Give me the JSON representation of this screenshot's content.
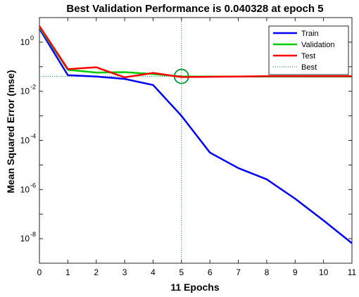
{
  "chart_data": {
    "type": "line",
    "title": "Best Validation Performance is 0.040328 at epoch 5",
    "xlabel": "11 Epochs",
    "ylabel": "Mean Squared Error  (mse)",
    "x": [
      0,
      1,
      2,
      3,
      4,
      5,
      6,
      7,
      8,
      9,
      10,
      11
    ],
    "xlim": [
      0,
      11
    ],
    "ylim": [
      1e-09,
      10
    ],
    "yscale": "log",
    "xticks": [
      "0",
      "1",
      "2",
      "3",
      "4",
      "5",
      "6",
      "7",
      "8",
      "9",
      "10",
      "11"
    ],
    "yticks": [
      {
        "value": 1,
        "base": "10",
        "exp": "0"
      },
      {
        "value": 0.01,
        "base": "10",
        "exp": "-2"
      },
      {
        "value": 0.0001,
        "base": "10",
        "exp": "-4"
      },
      {
        "value": 1e-06,
        "base": "10",
        "exp": "-6"
      },
      {
        "value": 1e-08,
        "base": "10",
        "exp": "-8"
      }
    ],
    "grid": false,
    "legend_position": "top-right",
    "series": [
      {
        "name": "Train",
        "color": "#0000ff",
        "values": [
          3.5,
          0.045,
          0.04,
          0.032,
          0.018,
          0.001,
          3.2e-05,
          7.5e-06,
          2.6e-06,
          4.2e-07,
          5.5e-08,
          6.5e-09
        ]
      },
      {
        "name": "Validation",
        "color": "#00cc00",
        "values": [
          4.0,
          0.075,
          0.058,
          0.06,
          0.05,
          0.040328,
          0.04,
          0.04,
          0.04,
          0.04,
          0.04,
          0.04
        ]
      },
      {
        "name": "Test",
        "color": "#ff0000",
        "values": [
          4.5,
          0.08,
          0.095,
          0.037,
          0.056,
          0.038,
          0.039,
          0.04,
          0.041,
          0.041,
          0.041,
          0.041
        ]
      }
    ],
    "best": {
      "label": "Best",
      "epoch": 5,
      "value": 0.040328,
      "color": "#009933"
    }
  }
}
